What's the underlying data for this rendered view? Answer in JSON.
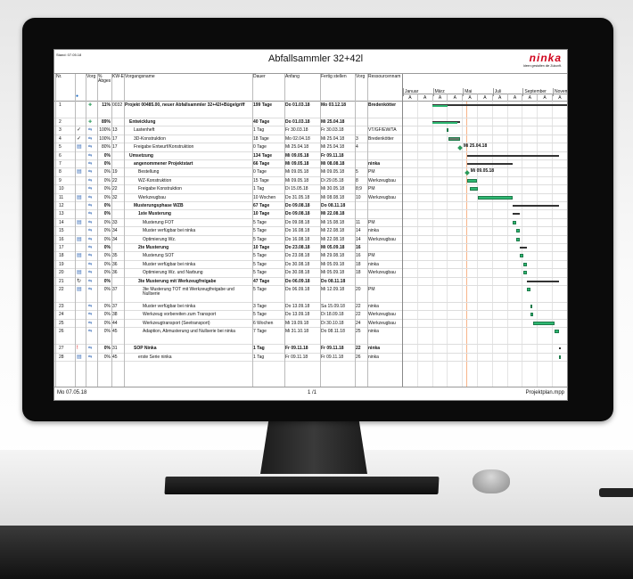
{
  "document": {
    "stand": "Stand: 07.05.18",
    "title": "Abfallsammler 32+42l",
    "logo": {
      "name": "ninka",
      "tagline": "Ideen gestalten die Zukunft."
    },
    "footer": {
      "date": "Mo 07.05.18",
      "page": "1 /1",
      "file": "Projektplan.mpp"
    }
  },
  "columns": {
    "nr": "Nr.",
    "info": "i",
    "mode": "Vorg",
    "pct": "% Abges",
    "kw": "KW-E",
    "name": "Vorgangsname",
    "dur": "Dauer",
    "start": "Anfang",
    "end": "Fertig stellen",
    "pred": "Vorg",
    "res": "Ressourcennam"
  },
  "timescale": {
    "months": [
      "Januar",
      "März",
      "Mai",
      "Juli",
      "September",
      "Novem"
    ],
    "sub": [
      "A",
      "A",
      "A",
      "A",
      "A",
      "A",
      "A",
      "A",
      "A",
      "A",
      "A",
      "A"
    ]
  },
  "status_date": "07.05.18",
  "colors": {
    "task": "#2eb872",
    "summary": "#333333",
    "today": "#f7b48a",
    "logo": "#d0021b",
    "link": "#2a9a5a"
  },
  "milestone_labels": {
    "5": "Mi 25.04.18",
    "8": "Mi 09.05.18"
  },
  "rows": [
    {
      "nr": "1",
      "ind": "",
      "pct": "11%",
      "kw": "0032",
      "name": "Projekt 00485.00, neuer Abfallsammler 32+42l+Bügelgriff",
      "dur": "199 Tage",
      "start": "Do 01.03.18",
      "end": "Mo 03.12.18",
      "pred": "",
      "res": "Bredenkötter",
      "summary": true,
      "level": 0,
      "tall": true
    },
    {
      "nr": "2",
      "ind": "",
      "pct": "89%",
      "kw": "",
      "name": "Entwicklung",
      "dur": "40 Tage",
      "start": "Do 01.03.18",
      "end": "Mi 25.04.18",
      "pred": "",
      "res": "",
      "summary": true,
      "level": 1
    },
    {
      "nr": "3",
      "ind": "check",
      "pct": "100%",
      "kw": "13",
      "name": "Lastenheft",
      "dur": "1 Tag",
      "start": "Fr 30.03.18",
      "end": "Fr 30.03.18",
      "pred": "",
      "res": "VT/GF/EW/TA",
      "level": 2
    },
    {
      "nr": "4",
      "ind": "check",
      "pct": "100%",
      "kw": "17",
      "name": "3D-Konstruktion",
      "dur": "18 Tage",
      "start": "Mo 02.04.18",
      "end": "Mi 25.04.18",
      "pred": "3",
      "res": "Bredenkötter",
      "level": 2
    },
    {
      "nr": "5",
      "ind": "note",
      "pct": "80%",
      "kw": "17",
      "name": "Freigabe Entwurf/Konstruktion",
      "dur": "0 Tage",
      "start": "Mi 25.04.18",
      "end": "Mi 25.04.18",
      "pred": "4",
      "res": "",
      "level": 2,
      "milestone": true
    },
    {
      "nr": "6",
      "ind": "",
      "pct": "0%",
      "kw": "",
      "name": "Umsetzung",
      "dur": "134 Tage",
      "start": "Mi 09.05.18",
      "end": "Fr 09.11.18",
      "pred": "",
      "res": "",
      "summary": true,
      "level": 1
    },
    {
      "nr": "7",
      "ind": "",
      "pct": "0%",
      "kw": "",
      "name": "angenommener Projektstart",
      "dur": "66 Tage",
      "start": "Mi 09.05.18",
      "end": "Mi 08.08.18",
      "pred": "",
      "res": "ninka",
      "summary": true,
      "level": 2
    },
    {
      "nr": "8",
      "ind": "note",
      "pct": "0%",
      "kw": "19",
      "name": "Bestellung",
      "dur": "0 Tage",
      "start": "Mi 09.05.18",
      "end": "Mi 09.05.18",
      "pred": "5",
      "res": "PM",
      "level": 3,
      "milestone": true
    },
    {
      "nr": "9",
      "ind": "",
      "pct": "0%",
      "kw": "22",
      "name": "WZ-Konstruktion",
      "dur": "15 Tage",
      "start": "Mi 09.05.18",
      "end": "Di 29.05.18",
      "pred": "8",
      "res": "Werkzeugbau",
      "level": 3
    },
    {
      "nr": "10",
      "ind": "",
      "pct": "0%",
      "kw": "22",
      "name": "Freigabe Konstruktion",
      "dur": "1 Tag",
      "start": "Di 15.05.18",
      "end": "Mi 30.05.18",
      "pred": "8;9",
      "res": "PM",
      "level": 3
    },
    {
      "nr": "11",
      "ind": "note",
      "pct": "0%",
      "kw": "32",
      "name": "Werkzeugbau",
      "dur": "10 Wochen",
      "start": "Do 31.05.18",
      "end": "Mi 08.08.18",
      "pred": "10",
      "res": "Werkzeugbau",
      "level": 3
    },
    {
      "nr": "12",
      "ind": "",
      "pct": "0%",
      "kw": "",
      "name": "Musterungsphase WZB",
      "dur": "67 Tage",
      "start": "Do 09.08.18",
      "end": "Do 08.11.18",
      "pred": "",
      "res": "",
      "summary": true,
      "level": 2
    },
    {
      "nr": "13",
      "ind": "",
      "pct": "0%",
      "kw": "",
      "name": "1ste Musterung",
      "dur": "10 Tage",
      "start": "Do 09.08.18",
      "end": "Mi 22.08.18",
      "pred": "",
      "res": "",
      "summary": true,
      "level": 3
    },
    {
      "nr": "14",
      "ind": "note",
      "pct": "0%",
      "kw": "33",
      "name": "Musterung FOT",
      "dur": "5 Tage",
      "start": "Do 09.08.18",
      "end": "Mi 15.08.18",
      "pred": "11",
      "res": "PM",
      "level": 4
    },
    {
      "nr": "15",
      "ind": "",
      "pct": "0%",
      "kw": "34",
      "name": "Muster verfügbar bei ninka",
      "dur": "5 Tage",
      "start": "Do 16.08.18",
      "end": "Mi 22.08.18",
      "pred": "14",
      "res": "ninka",
      "level": 4
    },
    {
      "nr": "16",
      "ind": "note",
      "pct": "0%",
      "kw": "34",
      "name": "Optimierung Wz.",
      "dur": "5 Tage",
      "start": "Do 16.08.18",
      "end": "Mi 22.08.18",
      "pred": "14",
      "res": "Werkzeugbau",
      "level": 4
    },
    {
      "nr": "17",
      "ind": "",
      "pct": "0%",
      "kw": "",
      "name": "2te Musterung",
      "dur": "10 Tage",
      "start": "Do 23.08.18",
      "end": "Mi 05.09.18",
      "pred": "16",
      "res": "",
      "summary": true,
      "level": 3
    },
    {
      "nr": "18",
      "ind": "note",
      "pct": "0%",
      "kw": "35",
      "name": "Musterung SOT",
      "dur": "5 Tage",
      "start": "Do 23.08.18",
      "end": "Mi 29.08.18",
      "pred": "16",
      "res": "PM",
      "level": 4
    },
    {
      "nr": "19",
      "ind": "",
      "pct": "0%",
      "kw": "36",
      "name": "Muster verfügbar bei ninka",
      "dur": "5 Tage",
      "start": "Do 30.08.18",
      "end": "Mi 05.09.18",
      "pred": "18",
      "res": "ninka",
      "level": 4
    },
    {
      "nr": "20",
      "ind": "note",
      "pct": "0%",
      "kw": "36",
      "name": "Optimierung Wz. und Narbung",
      "dur": "5 Tage",
      "start": "Do 30.08.18",
      "end": "Mi 05.09.18",
      "pred": "18",
      "res": "Werkzeugbau",
      "level": 4
    },
    {
      "nr": "21",
      "ind": "recurring",
      "pct": "0%",
      "kw": "",
      "name": "3te Musterung mit Werkzeugfreigabe",
      "dur": "47 Tage",
      "start": "Do 06.09.18",
      "end": "Do 08.11.18",
      "pred": "",
      "res": "",
      "summary": true,
      "level": 3
    },
    {
      "nr": "22",
      "ind": "note",
      "pct": "0%",
      "kw": "37",
      "name": "3te Musterung TOT mit Werkzeugfreigabe und Nullserie",
      "dur": "5 Tage",
      "start": "Do 06.09.18",
      "end": "Mi 12.09.18",
      "pred": "20",
      "res": "PM",
      "level": 4,
      "tall": true
    },
    {
      "nr": "23",
      "ind": "",
      "pct": "0%",
      "kw": "37",
      "name": "Muster verfügbar bei ninka",
      "dur": "3 Tage",
      "start": "Do 13.09.18",
      "end": "Sa 15.09.18",
      "pred": "22",
      "res": "ninka",
      "level": 4
    },
    {
      "nr": "24",
      "ind": "",
      "pct": "0%",
      "kw": "38",
      "name": "Werkzeug vorbereiten zum Transport",
      "dur": "5 Tage",
      "start": "Do 13.09.18",
      "end": "Di 18.09.18",
      "pred": "22",
      "res": "Werkzeugbau",
      "level": 4
    },
    {
      "nr": "25",
      "ind": "",
      "pct": "0%",
      "kw": "44",
      "name": "Werkzeugtransport (Seetransport)",
      "dur": "6 Wochen",
      "start": "Mi 19.09.18",
      "end": "Di 30.10.18",
      "pred": "24",
      "res": "Werkzeugbau",
      "level": 4
    },
    {
      "nr": "26",
      "ind": "",
      "pct": "0%",
      "kw": "45",
      "name": "Adaption, Abmusterung und Nullserie bei ninka",
      "dur": "7 Tage",
      "start": "Mi 31.10.18",
      "end": "Do 08.11.18",
      "pred": "25",
      "res": "ninka",
      "level": 4,
      "tall": true
    },
    {
      "nr": "27",
      "ind": "deadline",
      "pct": "0%",
      "kw": "31",
      "name": "SOP Ninka",
      "dur": "1 Tag",
      "start": "Fr 09.11.18",
      "end": "Fr 09.11.18",
      "pred": "22",
      "res": "ninka",
      "summary": true,
      "level": 2
    },
    {
      "nr": "28",
      "ind": "note",
      "pct": "0%",
      "kw": "45",
      "name": "erste Serie ninka",
      "dur": "1 Tag",
      "start": "Fr 09.11.18",
      "end": "Fr 09.11.18",
      "pred": "26",
      "res": "ninka",
      "level": 3
    }
  ]
}
